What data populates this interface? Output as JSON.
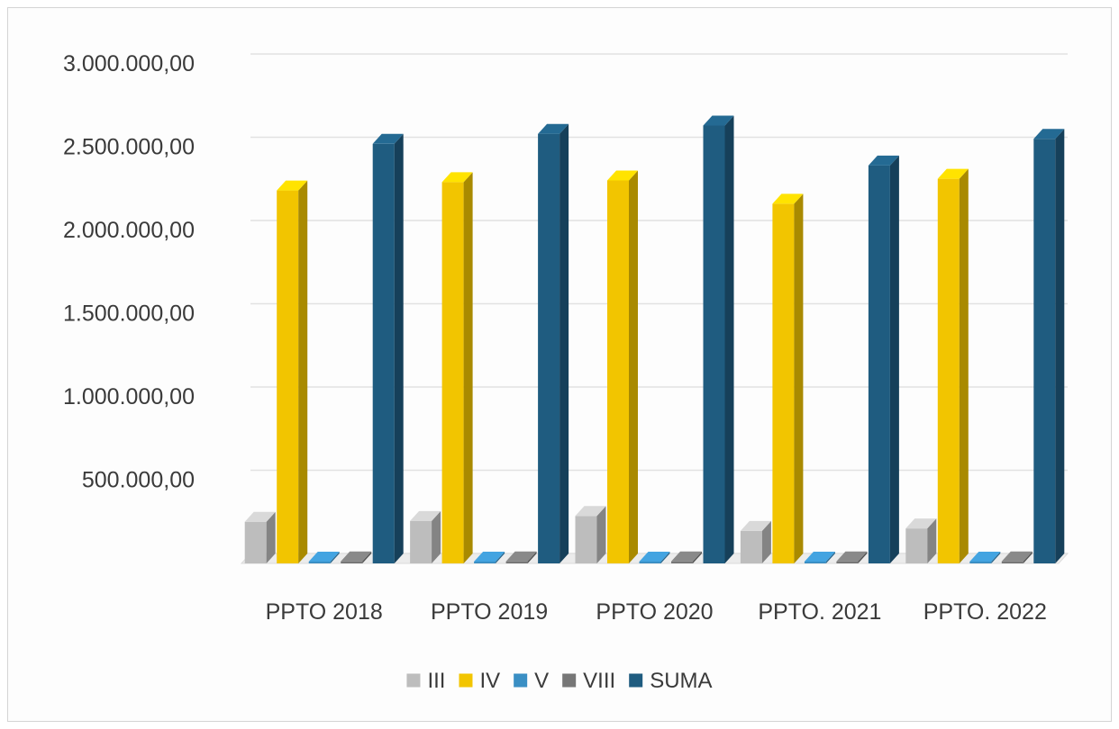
{
  "chart_data": {
    "type": "bar",
    "style": "3d-clustered-column",
    "categories": [
      "PPTO 2018",
      "PPTO 2019",
      "PPTO 2020",
      "PPTO. 2021",
      "PPTO. 2022"
    ],
    "series": [
      {
        "name": "III",
        "color": "#bdbdbd",
        "values": [
          250000,
          255000,
          285000,
          195000,
          210000
        ]
      },
      {
        "name": "IV",
        "color": "#f2c500",
        "values": [
          2240000,
          2290000,
          2300000,
          2160000,
          2310000
        ]
      },
      {
        "name": "V",
        "color": "#3a8fc4",
        "values": [
          3000,
          3000,
          3000,
          3000,
          3000
        ]
      },
      {
        "name": "VIII",
        "color": "#777777",
        "values": [
          12000,
          12000,
          12000,
          12000,
          12000
        ]
      },
      {
        "name": "SUMA",
        "color": "#1f5c80",
        "values": [
          2520000,
          2580000,
          2630000,
          2390000,
          2550000
        ]
      }
    ],
    "y_ticks": [
      "",
      "500.000,00",
      "1.000.000,00",
      "1.500.000,00",
      "2.000.000,00",
      "2.500.000,00",
      "3.000.000,00"
    ],
    "ylim": [
      0,
      3000000
    ],
    "grid": true,
    "legend": "bottom"
  }
}
